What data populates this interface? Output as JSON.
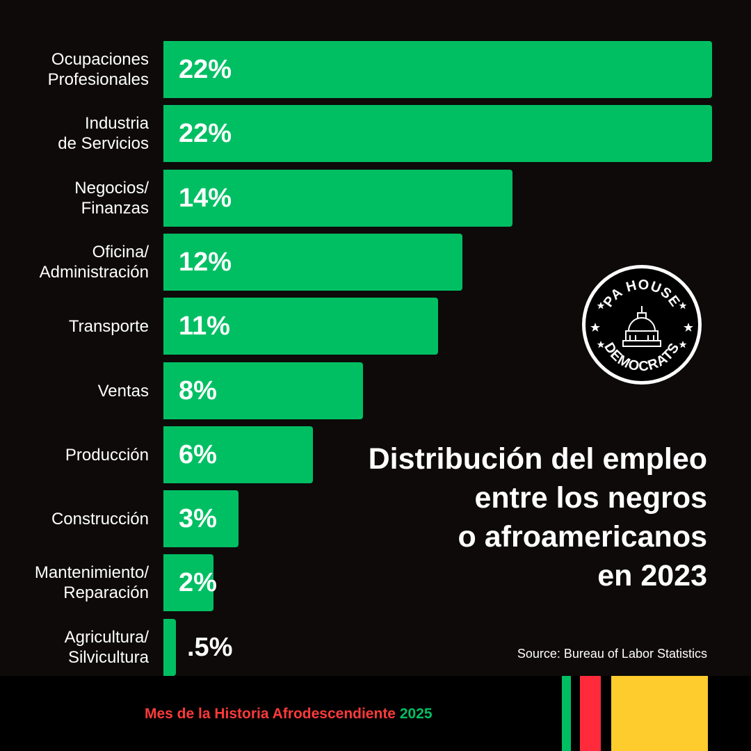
{
  "chart_data": {
    "type": "bar",
    "orientation": "horizontal",
    "title": "Distribución del empleo\nentre los negros\no afroamericanos \nen 2023",
    "categories": [
      "Ocupaciones\nProfesionales",
      "Industria \nde Servicios",
      "Negocios/\nFinanzas",
      "Oficina/\nAdministración",
      "Transporte",
      "Ventas",
      "Producción",
      "Construcción",
      "Mantenimiento/\nReparación",
      "Agricultura/\nSilvicultura"
    ],
    "values": [
      22,
      22,
      14,
      12,
      11,
      8,
      6,
      3,
      2,
      0.5
    ],
    "value_labels": [
      "22%",
      "22%",
      "14%",
      "12%",
      "11%",
      "8%",
      "6%",
      "3%",
      "2%",
      ".5%"
    ],
    "xlim": [
      0,
      22
    ],
    "bar_color": "#00bf63",
    "source": "Source: Bureau of Labor Statistics"
  },
  "logo": {
    "top_text": "PA HOUSE",
    "bottom_text": "DEMOCRATS"
  },
  "footer": {
    "text_main": "Mes de la Historia Afrodescendiente ",
    "text_year": "2025",
    "colors": {
      "main": "#ff3a3a",
      "year": "#00bf63",
      "green": "#00bf63",
      "red": "#ff2a3a",
      "yellow": "#ffcc2e"
    }
  },
  "colors": {
    "background": "#0d0a09",
    "bar": "#00bf63",
    "text": "#ffffff"
  }
}
